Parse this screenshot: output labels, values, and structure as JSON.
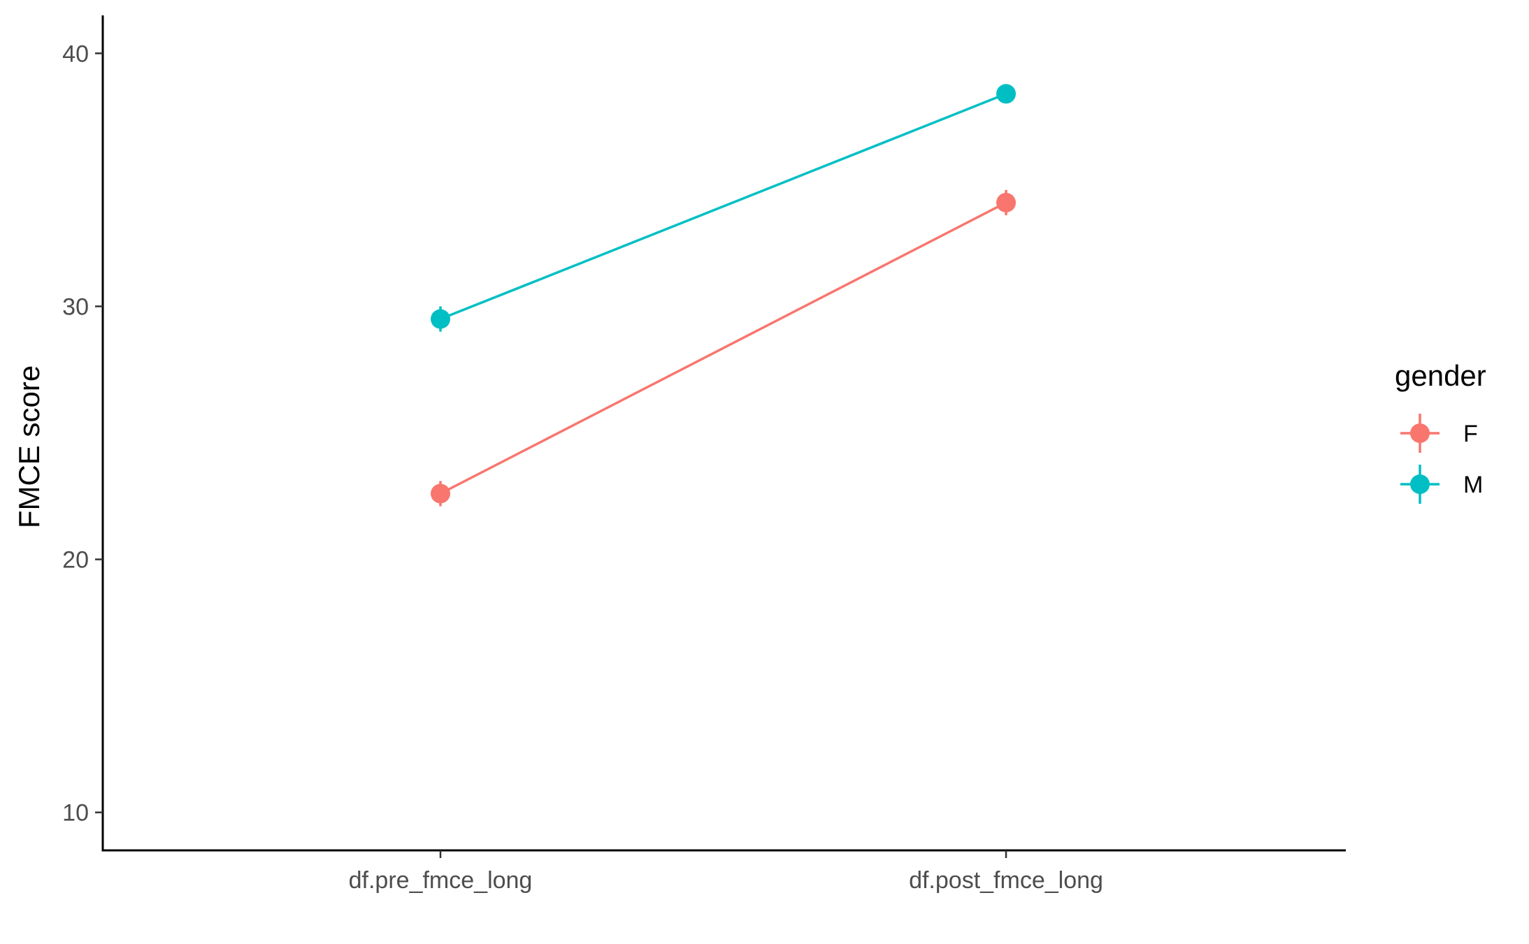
{
  "chart_data": {
    "type": "line",
    "title": "",
    "xlabel": "",
    "ylabel": "FMCE score",
    "categories": [
      "df.pre_fmce_long",
      "df.post_fmce_long"
    ],
    "ylim": [
      8.5,
      41.5
    ],
    "yticks": [
      10,
      20,
      30,
      40
    ],
    "ytick_labels": [
      "10",
      "20",
      "30",
      "40"
    ],
    "grid": false,
    "legend_position": "right",
    "legend_title": "gender",
    "series": [
      {
        "name": "F",
        "color": "#F8766D",
        "values": [
          22.6,
          34.1
        ],
        "errors": [
          0.5,
          0.5
        ]
      },
      {
        "name": "M",
        "color": "#00BFC4",
        "values": [
          29.5,
          38.4
        ],
        "errors": [
          0.5,
          0.3
        ]
      }
    ]
  }
}
